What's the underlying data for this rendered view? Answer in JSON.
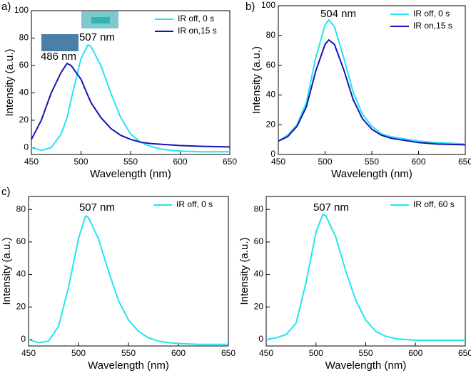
{
  "chart_data": [
    {
      "type": "line",
      "panel_label": "a)",
      "xlabel": "Wavelength (nm)",
      "ylabel": "Intensity (a.u.)",
      "annotations": [
        "507 nm",
        "486 nm"
      ],
      "x": [
        450,
        460,
        470,
        480,
        486,
        490,
        500,
        507,
        510,
        520,
        530,
        540,
        550,
        560,
        570,
        580,
        590,
        600,
        620,
        650
      ],
      "series": [
        {
          "name": "IR off, 0 s",
          "color": "#22e5f0",
          "values": [
            0,
            -2,
            0,
            10,
            22,
            35,
            65,
            75,
            74,
            60,
            40,
            22,
            10,
            4,
            1,
            -1,
            -2,
            -2.5,
            -3,
            -3
          ]
        },
        {
          "name": "IR on,15 s",
          "color": "#1414b4",
          "values": [
            6,
            20,
            40,
            55,
            61.5,
            60,
            50,
            38,
            33,
            22,
            14,
            9,
            6,
            4,
            3,
            2.5,
            2,
            1.5,
            1,
            0.5
          ]
        }
      ],
      "xlim": [
        450,
        650
      ],
      "xticks": [
        450,
        500,
        550,
        600,
        650
      ],
      "ylim": [
        -5,
        100
      ],
      "yticks": [
        0,
        20,
        40,
        60,
        80,
        100
      ],
      "legend": "upper right"
    },
    {
      "type": "line",
      "panel_label": "b)",
      "xlabel": "Wavelength (nm)",
      "ylabel": "Intensity (a.u.)",
      "annotations": [
        "504 nm"
      ],
      "x": [
        450,
        460,
        470,
        480,
        490,
        500,
        504,
        510,
        520,
        530,
        540,
        550,
        560,
        570,
        580,
        590,
        600,
        620,
        650
      ],
      "series": [
        {
          "name": "IR off, 0 s",
          "color": "#22e5f0",
          "values": [
            9,
            13,
            20,
            35,
            65,
            87,
            90.5,
            86,
            65,
            42,
            27,
            19,
            14,
            12,
            11,
            10,
            9,
            8,
            7
          ]
        },
        {
          "name": "IR on,15 s",
          "color": "#1414b4",
          "values": [
            9,
            12,
            19,
            32,
            56,
            74,
            77,
            74,
            57,
            37,
            24,
            17,
            13,
            11,
            10,
            9,
            8,
            7,
            6.5
          ]
        }
      ],
      "xlim": [
        450,
        650
      ],
      "xticks": [
        450,
        500,
        550,
        600,
        650
      ],
      "ylim": [
        0,
        100
      ],
      "yticks": [
        0,
        20,
        40,
        60,
        80,
        100
      ],
      "legend": "upper right"
    },
    {
      "type": "line",
      "panel_label": "c)",
      "xlabel": "Wavelength (nm)",
      "ylabel": "Intensity (a.u.)",
      "annotations": [
        "507 nm"
      ],
      "x": [
        450,
        460,
        470,
        480,
        490,
        500,
        507,
        510,
        520,
        530,
        540,
        550,
        560,
        570,
        580,
        590,
        600,
        620,
        650
      ],
      "series": [
        {
          "name": "IR off, 0 s",
          "color": "#22e5f0",
          "values": [
            0,
            -2,
            -1,
            8,
            32,
            62,
            76,
            75,
            62,
            42,
            24,
            12,
            5,
            1,
            -1,
            -2,
            -2.5,
            -3,
            -3
          ]
        }
      ],
      "xlim": [
        450,
        650
      ],
      "xticks": [
        450,
        500,
        550,
        600,
        650
      ],
      "ylim": [
        -4,
        88
      ],
      "yticks": [
        0,
        20,
        40,
        60,
        80
      ],
      "legend": "upper right"
    },
    {
      "type": "line",
      "xlabel": "Wavelength (nm)",
      "ylabel": "Intensity (a.u.)",
      "annotations": [
        "507 nm"
      ],
      "x": [
        450,
        460,
        470,
        480,
        490,
        500,
        507,
        510,
        520,
        530,
        540,
        550,
        560,
        570,
        580,
        590,
        600,
        620,
        650
      ],
      "series": [
        {
          "name": "IR off, 60 s",
          "color": "#22e5f0",
          "values": [
            0,
            1,
            3,
            10,
            35,
            66,
            77,
            76,
            63,
            42,
            24,
            12,
            5,
            2,
            0.5,
            0,
            -0.5,
            -0.5,
            -0.5
          ]
        }
      ],
      "xlim": [
        450,
        650
      ],
      "xticks": [
        450,
        500,
        550,
        600,
        650
      ],
      "ylim": [
        -4,
        88
      ],
      "yticks": [
        0,
        20,
        40,
        60,
        80
      ],
      "legend": "upper right"
    }
  ]
}
